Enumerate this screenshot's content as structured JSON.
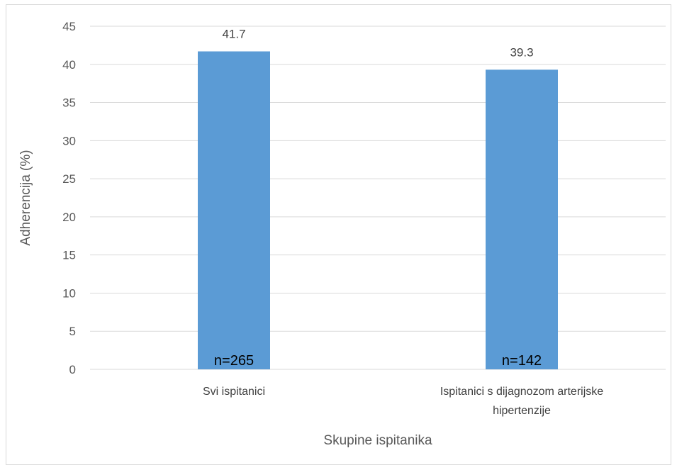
{
  "chart_data": {
    "type": "bar",
    "title": "",
    "xlabel": "Skupine ispitanika",
    "ylabel": "Adherencija  (%)",
    "ylim": [
      0,
      45
    ],
    "yticks": [
      0,
      5,
      10,
      15,
      20,
      25,
      30,
      35,
      40,
      45
    ],
    "grid": true,
    "categories": [
      [
        "Svi ispitanici"
      ],
      [
        "Ispitanici s dijagnozom arterijske",
        "hipertenzije"
      ]
    ],
    "values": [
      41.7,
      39.3
    ],
    "value_labels": [
      "41.7",
      "39.3"
    ],
    "bar_annotations": [
      "n=265",
      "n=142"
    ],
    "bar_color": "#5b9bd5",
    "grid_color": "#d9d9d9"
  }
}
